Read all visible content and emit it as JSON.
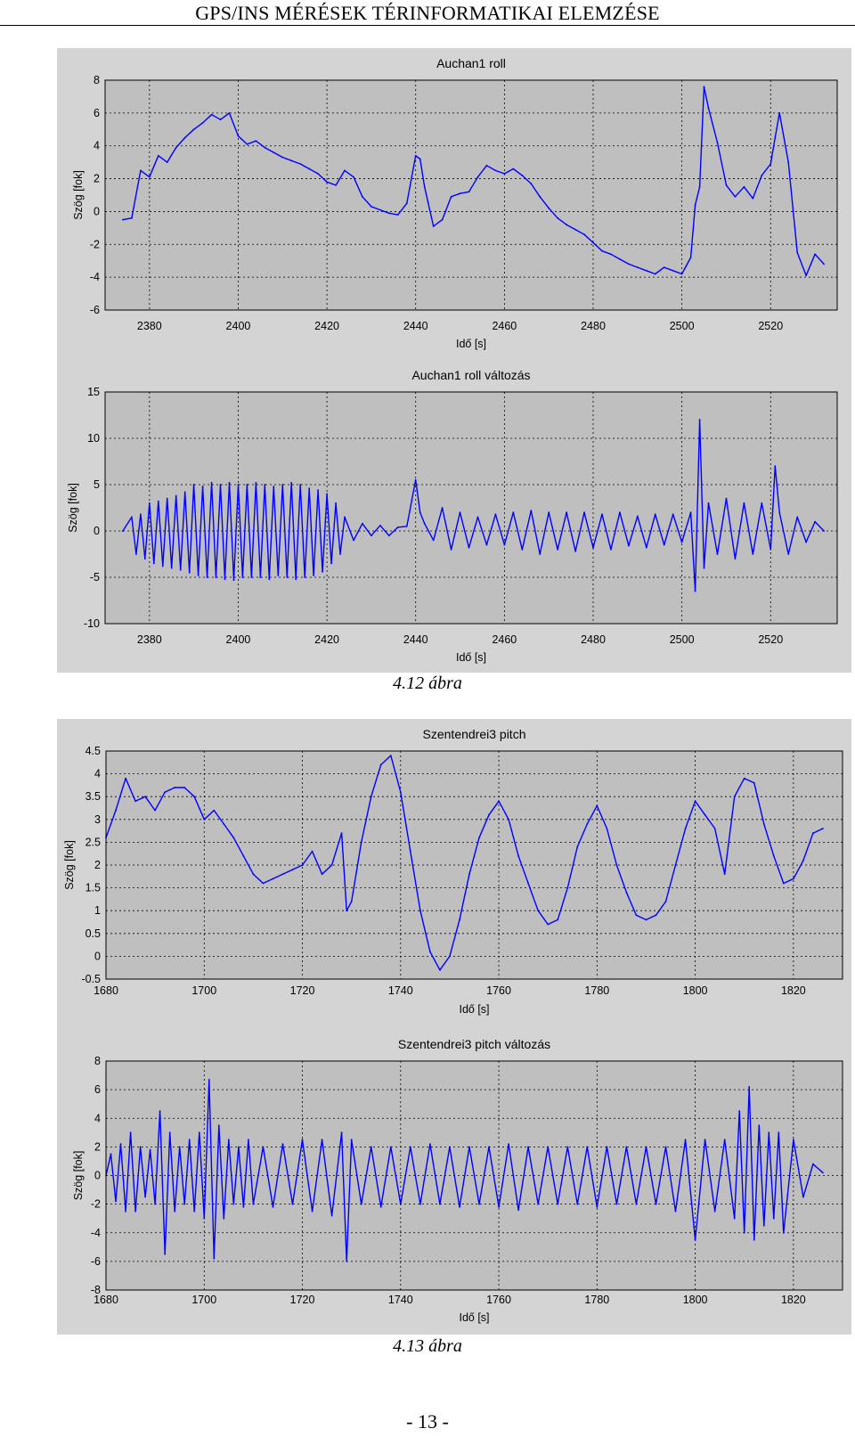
{
  "header": {
    "title": "GPS/INS MÉRÉSEK TÉRINFORMATIKAI ELEMZÉSE"
  },
  "captions": [
    "4.12 ábra",
    "4.13 ábra"
  ],
  "page_number": "- 13 -",
  "colors": {
    "line": "#0000ff",
    "plot_bg": "#bfbfbf",
    "figure_bg": "#d4d4d4",
    "grid": "#000000"
  },
  "chart_data": [
    {
      "type": "line",
      "title": "Auchan1 roll",
      "xlabel": "Idő [s]",
      "ylabel": "Szög [fok]",
      "xlim": [
        2370,
        2535
      ],
      "ylim": [
        -6,
        8
      ],
      "xticks": [
        2380,
        2400,
        2420,
        2440,
        2460,
        2480,
        2500,
        2520
      ],
      "yticks": [
        -6,
        -4,
        -2,
        0,
        2,
        4,
        6,
        8
      ],
      "grid": true,
      "series": [
        {
          "x": [
            2374,
            2376,
            2378,
            2380,
            2382,
            2384,
            2386,
            2388,
            2390,
            2392,
            2394,
            2396,
            2398,
            2400,
            2402,
            2404,
            2406,
            2408,
            2410,
            2412,
            2414,
            2416,
            2418,
            2420,
            2422,
            2424,
            2426,
            2428,
            2430,
            2432,
            2434,
            2436,
            2438,
            2440,
            2441,
            2442,
            2444,
            2446,
            2448,
            2450,
            2452,
            2454,
            2456,
            2458,
            2460,
            2462,
            2464,
            2466,
            2468,
            2470,
            2472,
            2474,
            2476,
            2478,
            2480,
            2482,
            2484,
            2486,
            2488,
            2490,
            2492,
            2494,
            2496,
            2498,
            2500,
            2502,
            2503,
            2504,
            2505,
            2506,
            2508,
            2510,
            2512,
            2514,
            2516,
            2518,
            2520,
            2521,
            2522,
            2524,
            2526,
            2528,
            2530,
            2532
          ],
          "y": [
            -0.5,
            -0.4,
            2.5,
            2.1,
            3.4,
            3.0,
            3.9,
            4.5,
            5.0,
            5.4,
            5.9,
            5.6,
            6.0,
            4.6,
            4.1,
            4.3,
            3.9,
            3.6,
            3.3,
            3.1,
            2.9,
            2.6,
            2.3,
            1.8,
            1.6,
            2.5,
            2.1,
            0.9,
            0.3,
            0.1,
            -0.1,
            -0.2,
            0.5,
            3.4,
            3.2,
            1.5,
            -0.9,
            -0.5,
            0.9,
            1.1,
            1.2,
            2.1,
            2.8,
            2.5,
            2.3,
            2.6,
            2.2,
            1.7,
            0.9,
            0.2,
            -0.4,
            -0.8,
            -1.1,
            -1.4,
            -1.9,
            -2.4,
            -2.6,
            -2.9,
            -3.2,
            -3.4,
            -3.6,
            -3.8,
            -3.4,
            -3.6,
            -3.8,
            -2.8,
            0.4,
            1.5,
            7.6,
            6.3,
            4.2,
            1.6,
            0.9,
            1.5,
            0.8,
            2.2,
            2.9,
            4.5,
            6.0,
            3.0,
            -2.5,
            -3.9,
            -2.6,
            -3.2
          ]
        }
      ]
    },
    {
      "type": "line",
      "title": "Auchan1 roll változás",
      "xlabel": "Idő [s]",
      "ylabel": "Szög [fok]",
      "xlim": [
        2370,
        2535
      ],
      "ylim": [
        -10,
        15
      ],
      "xticks": [
        2380,
        2400,
        2420,
        2440,
        2460,
        2480,
        2500,
        2520
      ],
      "yticks": [
        -10,
        -5,
        0,
        5,
        10,
        15
      ],
      "grid": true,
      "series": [
        {
          "x": [
            2374,
            2376,
            2377,
            2378,
            2379,
            2380,
            2381,
            2382,
            2383,
            2384,
            2385,
            2386,
            2387,
            2388,
            2389,
            2390,
            2391,
            2392,
            2393,
            2394,
            2395,
            2396,
            2397,
            2398,
            2399,
            2400,
            2401,
            2402,
            2403,
            2404,
            2405,
            2406,
            2407,
            2408,
            2409,
            2410,
            2411,
            2412,
            2413,
            2414,
            2415,
            2416,
            2417,
            2418,
            2419,
            2420,
            2421,
            2422,
            2423,
            2424,
            2426,
            2428,
            2430,
            2432,
            2434,
            2436,
            2438,
            2440,
            2441,
            2442,
            2444,
            2446,
            2448,
            2450,
            2452,
            2454,
            2456,
            2458,
            2460,
            2462,
            2464,
            2466,
            2468,
            2470,
            2472,
            2474,
            2476,
            2478,
            2480,
            2482,
            2484,
            2486,
            2488,
            2490,
            2492,
            2494,
            2496,
            2498,
            2500,
            2502,
            2503,
            2504,
            2505,
            2506,
            2508,
            2510,
            2512,
            2514,
            2516,
            2518,
            2520,
            2521,
            2522,
            2524,
            2526,
            2528,
            2530,
            2532
          ],
          "y": [
            0,
            1.5,
            -2.5,
            1.8,
            -3.0,
            3.0,
            -3.5,
            3.2,
            -3.8,
            3.5,
            -4.0,
            3.8,
            -4.2,
            4.2,
            -4.5,
            5.0,
            -4.8,
            4.8,
            -5.0,
            5.2,
            -5.0,
            5.0,
            -5.2,
            5.2,
            -5.3,
            5.0,
            -5.0,
            5.0,
            -5.0,
            5.2,
            -5.0,
            5.0,
            -5.2,
            4.8,
            -4.8,
            5.0,
            -5.0,
            5.2,
            -5.2,
            5.0,
            -5.0,
            4.6,
            -4.8,
            4.4,
            -4.4,
            4.0,
            -3.5,
            3.0,
            -2.5,
            1.5,
            -1.0,
            0.8,
            -0.5,
            0.6,
            -0.5,
            0.4,
            0.5,
            5.5,
            2.0,
            0.8,
            -1.0,
            2.5,
            -2.0,
            2.0,
            -1.8,
            1.5,
            -1.5,
            1.8,
            -1.5,
            2.0,
            -2.0,
            2.2,
            -2.5,
            2.0,
            -2.0,
            2.0,
            -2.2,
            2.0,
            -1.8,
            1.8,
            -2.0,
            2.0,
            -1.6,
            1.6,
            -1.8,
            1.8,
            -1.5,
            1.8,
            -1.2,
            2.0,
            -6.5,
            12.0,
            -4.0,
            3.0,
            -2.5,
            3.5,
            -3.0,
            3.0,
            -2.5,
            3.0,
            -2.0,
            7.0,
            2.0,
            -2.5,
            1.5,
            -1.2,
            1.0,
            0
          ]
        }
      ]
    },
    {
      "type": "line",
      "title": "Szentendrei3 pitch",
      "xlabel": "Idő [s]",
      "ylabel": "Szög [fok]",
      "xlim": [
        1680,
        1830
      ],
      "ylim": [
        -0.5,
        4.5
      ],
      "xticks": [
        1680,
        1700,
        1720,
        1740,
        1760,
        1780,
        1800,
        1820
      ],
      "yticks": [
        -0.5,
        0,
        0.5,
        1,
        1.5,
        2,
        2.5,
        3,
        3.5,
        4,
        4.5
      ],
      "grid": true,
      "series": [
        {
          "x": [
            1680,
            1682,
            1684,
            1686,
            1688,
            1690,
            1692,
            1694,
            1696,
            1698,
            1700,
            1702,
            1704,
            1706,
            1708,
            1710,
            1712,
            1714,
            1716,
            1718,
            1720,
            1722,
            1724,
            1726,
            1728,
            1729,
            1730,
            1732,
            1734,
            1736,
            1738,
            1740,
            1742,
            1744,
            1746,
            1748,
            1750,
            1752,
            1754,
            1756,
            1758,
            1760,
            1762,
            1764,
            1766,
            1768,
            1770,
            1772,
            1774,
            1776,
            1778,
            1780,
            1782,
            1784,
            1786,
            1788,
            1790,
            1792,
            1794,
            1796,
            1798,
            1800,
            1802,
            1804,
            1806,
            1808,
            1810,
            1812,
            1814,
            1816,
            1818,
            1820,
            1822,
            1824,
            1826
          ],
          "y": [
            2.6,
            3.2,
            3.9,
            3.4,
            3.5,
            3.2,
            3.6,
            3.7,
            3.7,
            3.5,
            3.0,
            3.2,
            2.9,
            2.6,
            2.2,
            1.8,
            1.6,
            1.7,
            1.8,
            1.9,
            2.0,
            2.3,
            1.8,
            2.0,
            2.7,
            1.0,
            1.2,
            2.5,
            3.5,
            4.2,
            4.4,
            3.6,
            2.3,
            1.0,
            0.1,
            -0.3,
            0.0,
            0.8,
            1.8,
            2.6,
            3.1,
            3.4,
            3.0,
            2.2,
            1.6,
            1.0,
            0.7,
            0.8,
            1.5,
            2.4,
            2.9,
            3.3,
            2.8,
            2.0,
            1.4,
            0.9,
            0.8,
            0.9,
            1.2,
            2.0,
            2.8,
            3.4,
            3.1,
            2.8,
            1.8,
            3.5,
            3.9,
            3.8,
            2.9,
            2.2,
            1.6,
            1.7,
            2.1,
            2.7,
            2.8
          ]
        }
      ]
    },
    {
      "type": "line",
      "title": "Szentendrei3 pitch változás",
      "xlabel": "Idő [s]",
      "ylabel": "Szög [fok]",
      "xlim": [
        1680,
        1830
      ],
      "ylim": [
        -8,
        8
      ],
      "xticks": [
        1680,
        1700,
        1720,
        1740,
        1760,
        1780,
        1800,
        1820
      ],
      "yticks": [
        -8,
        -6,
        -4,
        -2,
        0,
        2,
        4,
        6,
        8
      ],
      "grid": true,
      "series": [
        {
          "x": [
            1680,
            1681,
            1682,
            1683,
            1684,
            1685,
            1686,
            1687,
            1688,
            1689,
            1690,
            1691,
            1692,
            1693,
            1694,
            1695,
            1696,
            1697,
            1698,
            1699,
            1700,
            1701,
            1702,
            1703,
            1704,
            1705,
            1706,
            1707,
            1708,
            1709,
            1710,
            1712,
            1714,
            1716,
            1718,
            1720,
            1722,
            1724,
            1726,
            1728,
            1729,
            1730,
            1732,
            1734,
            1736,
            1738,
            1740,
            1742,
            1744,
            1746,
            1748,
            1750,
            1752,
            1754,
            1756,
            1758,
            1760,
            1762,
            1764,
            1766,
            1768,
            1770,
            1772,
            1774,
            1776,
            1778,
            1780,
            1782,
            1784,
            1786,
            1788,
            1790,
            1792,
            1794,
            1796,
            1798,
            1800,
            1802,
            1804,
            1806,
            1808,
            1809,
            1810,
            1811,
            1812,
            1813,
            1814,
            1815,
            1816,
            1817,
            1818,
            1820,
            1822,
            1824,
            1826
          ],
          "y": [
            0,
            1.5,
            -1.8,
            2.2,
            -2.5,
            3.0,
            -2.5,
            2.0,
            -1.5,
            1.8,
            -2.0,
            4.5,
            -5.5,
            3.0,
            -2.5,
            2.0,
            -2.0,
            2.5,
            -2.5,
            3.0,
            -3.0,
            6.7,
            -5.8,
            3.5,
            -3.0,
            2.5,
            -2.0,
            2.0,
            -2.2,
            2.5,
            -2.0,
            2.0,
            -2.2,
            2.2,
            -2.0,
            2.5,
            -2.5,
            2.5,
            -2.8,
            3.0,
            -6.0,
            2.5,
            -2.0,
            2.0,
            -2.2,
            2.0,
            -2.0,
            2.0,
            -2.0,
            2.2,
            -2.0,
            2.0,
            -2.2,
            2.0,
            -2.0,
            2.0,
            -2.2,
            2.2,
            -2.4,
            2.0,
            -2.0,
            2.0,
            -2.0,
            2.0,
            -2.0,
            2.0,
            -2.2,
            2.0,
            -2.0,
            2.0,
            -2.0,
            2.0,
            -2.0,
            2.0,
            -2.5,
            2.5,
            -4.5,
            2.5,
            -2.5,
            2.5,
            -3.0,
            4.5,
            -4.0,
            6.2,
            -4.5,
            3.5,
            -3.5,
            3.0,
            -3.0,
            3.0,
            -4.0,
            2.5,
            -1.5,
            0.8,
            0.2
          ]
        }
      ]
    }
  ]
}
